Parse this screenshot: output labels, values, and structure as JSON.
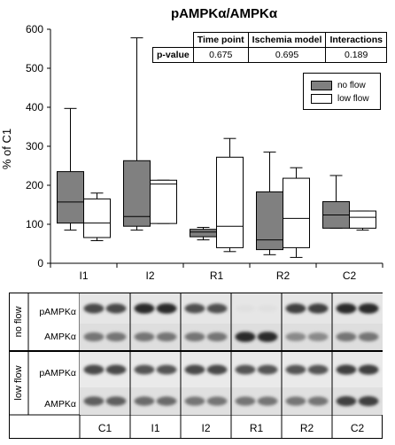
{
  "chart_data": {
    "type": "box",
    "title": "pAMPKα/AMPKα",
    "ylabel": "% of C1",
    "xlabel": "",
    "ylim": [
      0,
      600
    ],
    "yticks": [
      0,
      100,
      200,
      300,
      400,
      500,
      600
    ],
    "categories": [
      "I1",
      "I2",
      "R1",
      "R2",
      "C2"
    ],
    "series": [
      {
        "name": "no flow",
        "color": "#808080",
        "boxes": [
          {
            "min": 85,
            "q1": 103,
            "median": 157,
            "q3": 235,
            "max": 397
          },
          {
            "min": 85,
            "q1": 95,
            "median": 120,
            "q3": 263,
            "max": 578
          },
          {
            "min": 60,
            "q1": 68,
            "median": 80,
            "q3": 87,
            "max": 92
          },
          {
            "min": 22,
            "q1": 35,
            "median": 60,
            "q3": 183,
            "max": 285
          },
          {
            "min": 90,
            "q1": 90,
            "median": 124,
            "q3": 158,
            "max": 225
          }
        ]
      },
      {
        "name": "low flow",
        "color": "#ffffff",
        "boxes": [
          {
            "min": 58,
            "q1": 66,
            "median": 103,
            "q3": 165,
            "max": 180
          },
          {
            "min": 102,
            "q1": 102,
            "median": 203,
            "q3": 213,
            "max": 213
          },
          {
            "min": 30,
            "q1": 40,
            "median": 95,
            "q3": 272,
            "max": 320
          },
          {
            "min": 15,
            "q1": 40,
            "median": 115,
            "q3": 218,
            "max": 245
          },
          {
            "min": 85,
            "q1": 90,
            "median": 118,
            "q3": 134,
            "max": 134
          }
        ]
      }
    ],
    "legend": {
      "placement": "top-right",
      "entries": [
        "no flow",
        "low flow"
      ]
    }
  },
  "pvalue_table": {
    "headers": [
      "Time point",
      "Ischemia model",
      "Interactions"
    ],
    "row_label": "p-value",
    "values": [
      "0.675",
      "0.695",
      "0.189"
    ]
  },
  "blot": {
    "sections": [
      "no flow",
      "low flow"
    ],
    "bands": [
      "pAMPKα",
      "AMPKα"
    ],
    "lanes": [
      "C1",
      "I1",
      "I2",
      "R1",
      "R2",
      "C2"
    ],
    "intensity": {
      "no_flow_pAMPK": [
        0.75,
        0.9,
        0.72,
        0.05,
        0.8,
        0.9
      ],
      "no_flow_AMPK": [
        0.55,
        0.55,
        0.55,
        0.9,
        0.45,
        0.55
      ],
      "low_flow_pAMPK": [
        0.75,
        0.7,
        0.75,
        0.7,
        0.7,
        0.8
      ],
      "low_flow_AMPK": [
        0.65,
        0.6,
        0.55,
        0.55,
        0.55,
        0.8
      ]
    }
  }
}
